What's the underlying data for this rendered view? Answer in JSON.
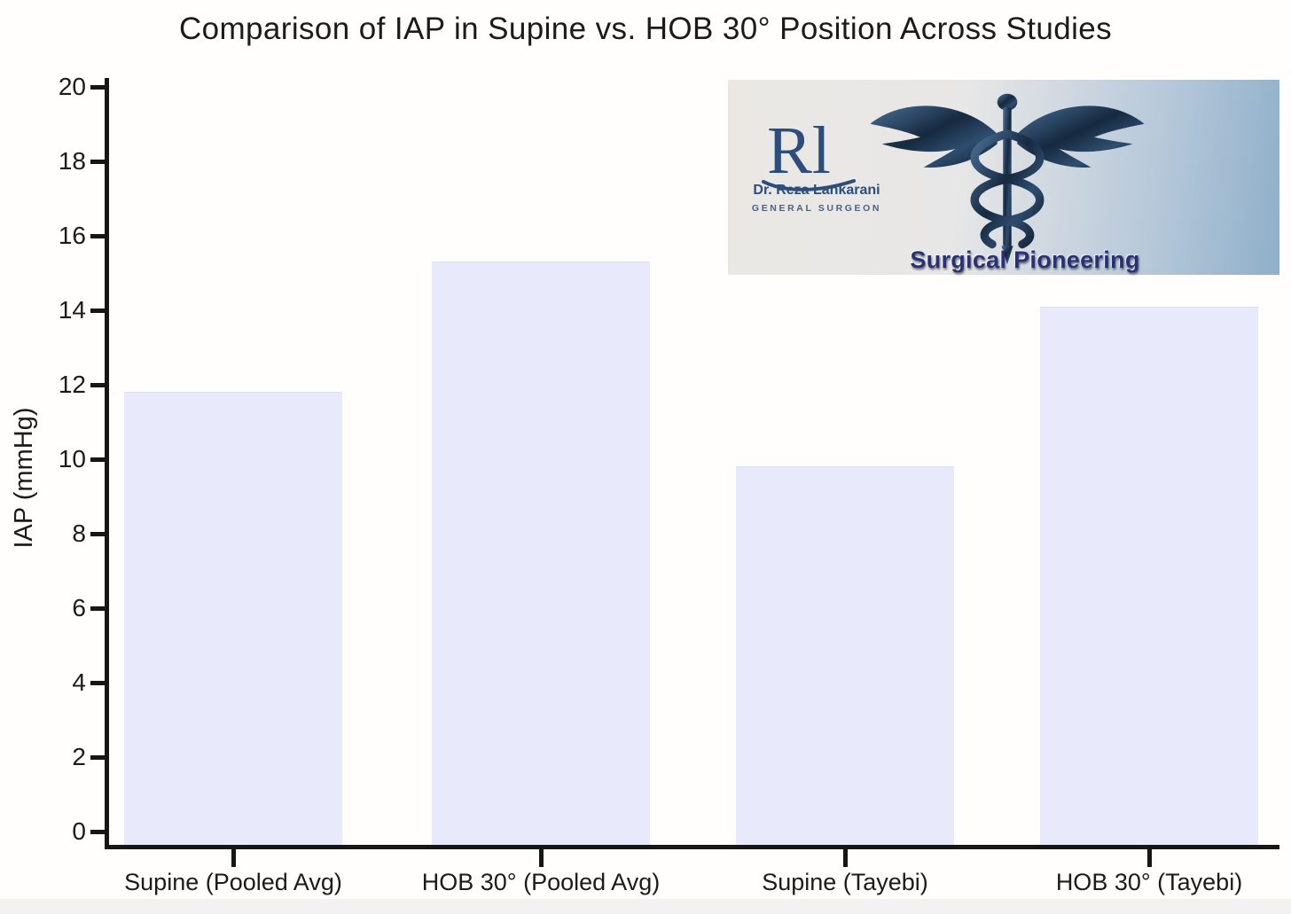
{
  "page": {
    "background": "#fffefd",
    "footer_strip_color": "#f4f1f2"
  },
  "chart_data": {
    "type": "bar",
    "title": "Comparison of IAP in Supine vs. HOB 30° Position Across Studies",
    "xlabel": "",
    "ylabel": "IAP (mmHg)",
    "categories": [
      "Supine (Pooled Avg)",
      "HOB 30° (Pooled Avg)",
      "Supine (Tayebi)",
      "HOB 30° (Tayebi)"
    ],
    "values": [
      11.8,
      15.3,
      9.8,
      14.1
    ],
    "ylim": [
      0,
      20
    ],
    "ytick_step": 2,
    "grid": false,
    "legend": "none",
    "bar_color": "#e8e9fb",
    "axis_color": "#161616",
    "text_color": "#1b1b1b"
  },
  "logo": {
    "monogram": "Rl",
    "name": "Dr. Reza Lankarani",
    "subtitle": "GENERAL SURGEON",
    "tagline": "Surgical Pioneering",
    "icon": "caduceus-icon",
    "colors": {
      "navy": "#2d4d7c",
      "tagline_navy": "#2b3274",
      "panel_left": "#ebe8e4",
      "panel_right": "#8fafc9"
    }
  }
}
